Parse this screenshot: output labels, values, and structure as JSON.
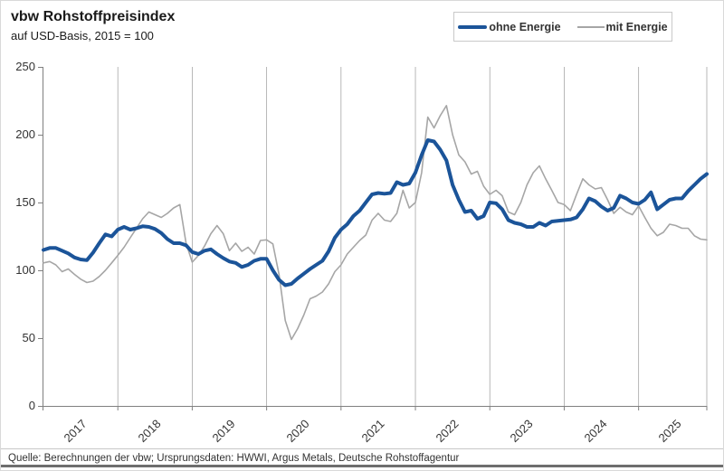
{
  "header": {
    "title": "vbw Rohstoffpreisindex",
    "subtitle": "auf USD-Basis, 2015 = 100"
  },
  "footer": {
    "source": "Quelle: Berechnungen der vbw; Ursprungsdaten: HWWI, Argus Metals, Deutsche Rohstoffagentur"
  },
  "chart_data": {
    "type": "line",
    "title": "vbw Rohstoffpreisindex",
    "subtitle": "auf USD-Basis, 2015 = 100",
    "x_frequency": "monthly",
    "x_start": "2017-01",
    "x_end": "2025-12",
    "x_tick_labels": [
      "2017",
      "2018",
      "2019",
      "2020",
      "2021",
      "2022",
      "2023",
      "2024",
      "2025"
    ],
    "ylim": [
      0,
      250
    ],
    "y_ticks": [
      0,
      50,
      100,
      150,
      200,
      250
    ],
    "grid": "vertical-only",
    "legend_position": "top-right",
    "series": [
      {
        "name": "ohne Energie",
        "color": "#1b5499",
        "width": 4,
        "values": [
          115,
          116.5,
          116.5,
          114.5,
          112.5,
          109.5,
          108,
          107.5,
          113,
          120,
          126.5,
          125,
          130,
          132,
          130,
          131,
          132.5,
          132,
          130.5,
          127.5,
          123,
          120,
          120,
          118.5,
          113.5,
          112,
          114.5,
          115.5,
          112,
          109,
          106.5,
          105.5,
          102.5,
          104,
          107,
          108.5,
          108.5,
          100,
          93,
          89,
          90,
          94,
          97.5,
          101,
          104,
          107,
          114,
          124,
          130,
          134,
          140,
          144,
          150,
          156,
          157,
          156.5,
          157,
          165,
          163,
          164,
          172,
          185,
          196,
          195,
          189,
          181,
          163,
          152,
          143,
          144,
          138,
          140,
          150,
          149.5,
          145,
          137,
          135,
          134,
          132,
          132,
          135,
          133,
          136,
          136.5,
          137,
          137.5,
          139,
          145,
          153,
          151,
          147,
          144,
          146,
          155,
          153,
          150,
          149,
          152,
          157.5,
          145,
          148.5,
          152,
          153,
          153,
          158.5,
          163,
          167.5,
          171
        ]
      },
      {
        "name": "mit Energie",
        "color": "#a6a6a6",
        "width": 1.6,
        "values": [
          105.5,
          106.5,
          104,
          99,
          101,
          97,
          93.5,
          91,
          92,
          95.5,
          100,
          105.5,
          111,
          117,
          124,
          131,
          138,
          143,
          141,
          139,
          142,
          146,
          148.5,
          120,
          106,
          111,
          118,
          127,
          133,
          127,
          114.5,
          120,
          114,
          117,
          112,
          122,
          122.5,
          119.5,
          97,
          63,
          49,
          57,
          67,
          79,
          81,
          84,
          90,
          99,
          104,
          112,
          117,
          122,
          126,
          137,
          142,
          137,
          136,
          142,
          159,
          146,
          150,
          172,
          213,
          205,
          214,
          221.5,
          200,
          185,
          180,
          171,
          173,
          162,
          156,
          159,
          155,
          143,
          141,
          150,
          163,
          172,
          177,
          167.5,
          159,
          150,
          148.5,
          144,
          156,
          167.5,
          163,
          160,
          161,
          152,
          142,
          146.5,
          143,
          141,
          147.5,
          139,
          131,
          125.5,
          128,
          134,
          133,
          131,
          131,
          125.5,
          123,
          122.5
        ]
      }
    ]
  }
}
